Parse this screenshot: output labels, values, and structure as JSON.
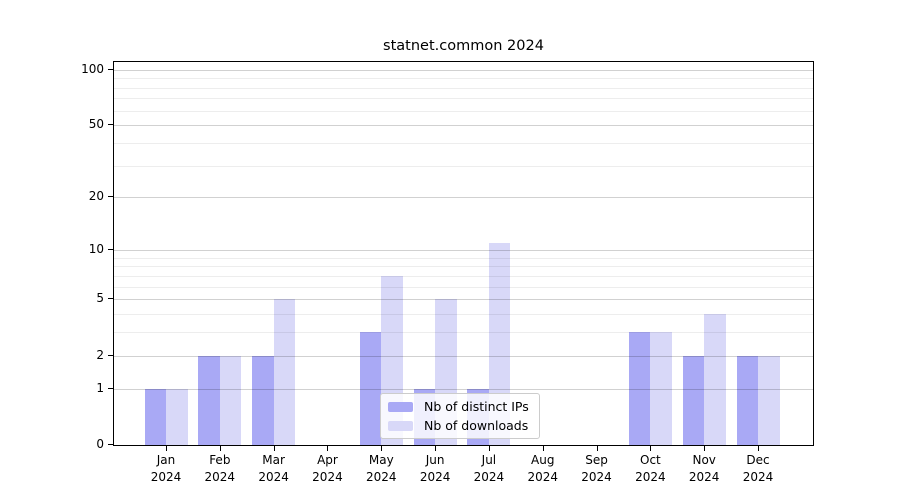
{
  "figure": {
    "background": "#ffffff"
  },
  "chart_data": {
    "type": "bar",
    "title": "statnet.common 2024",
    "categories": [
      "Jan 2024",
      "Feb 2024",
      "Mar 2024",
      "Apr 2024",
      "May 2024",
      "Jun 2024",
      "Jul 2024",
      "Aug 2024",
      "Sep 2024",
      "Oct 2024",
      "Nov 2024",
      "Dec 2024"
    ],
    "series": [
      {
        "name": "Nb of distinct IPs",
        "color": "#a9a9f5",
        "values": [
          1,
          2,
          2,
          0,
          3,
          1,
          1,
          0,
          0,
          3,
          2,
          2
        ]
      },
      {
        "name": "Nb of downloads",
        "color": "#d8d8f8",
        "values": [
          1,
          2,
          5,
          0,
          7,
          5,
          11,
          0,
          0,
          3,
          4,
          2
        ]
      }
    ],
    "xlabel": "",
    "ylabel": "",
    "yscale": "log1p",
    "ylim": [
      0,
      110
    ],
    "yticks": [
      0,
      1,
      2,
      5,
      10,
      20,
      50,
      100
    ],
    "minor_gridlines": [
      1,
      2,
      3,
      4,
      5,
      6,
      7,
      8,
      9,
      10,
      20,
      30,
      40,
      50,
      60,
      70,
      80,
      90,
      100
    ],
    "grid": true,
    "legend_position": "inside lower-center"
  }
}
